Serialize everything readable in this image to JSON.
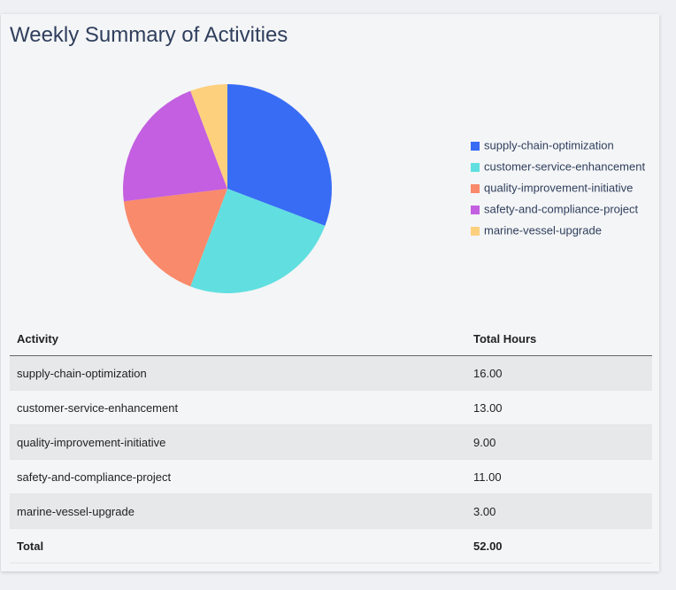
{
  "chart_data": {
    "type": "pie",
    "title": "Weekly Summary of Activities",
    "categories": [
      "supply-chain-optimization",
      "customer-service-enhancement",
      "quality-improvement-initiative",
      "safety-and-compliance-project",
      "marine-vessel-upgrade"
    ],
    "values": [
      16,
      13,
      9,
      11,
      3
    ],
    "colors": [
      "#386cf5",
      "#61dfe0",
      "#f98a6b",
      "#c35fe0",
      "#fdd07e"
    ],
    "legend": "right"
  },
  "table": {
    "headers": [
      "Activity",
      "Total Hours"
    ],
    "rows": [
      [
        "supply-chain-optimization",
        "16.00"
      ],
      [
        "customer-service-enhancement",
        "13.00"
      ],
      [
        "quality-improvement-initiative",
        "9.00"
      ],
      [
        "safety-and-compliance-project",
        "11.00"
      ],
      [
        "marine-vessel-upgrade",
        "3.00"
      ]
    ],
    "total": [
      "Total",
      "52.00"
    ]
  }
}
